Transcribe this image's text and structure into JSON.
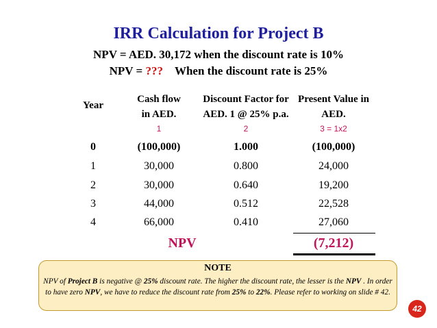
{
  "slide": {
    "title": "IRR Calculation for Project B",
    "line1": "NPV = AED. 30,172 when the discount rate is 10%",
    "line2_prefix": "NPV = ",
    "line2_unknown": "???",
    "line2_suffix": "When the discount rate is 25%",
    "number": "42"
  },
  "table": {
    "headers": {
      "year": "Year",
      "cash_flow_1": "Cash flow",
      "cash_flow_2": "in AED.",
      "discount_1": "Discount Factor for",
      "discount_2": "AED. 1 @ 25% p.a.",
      "pv_1": "Present Value in",
      "pv_2": "AED."
    },
    "column_index": {
      "cash_flow": "1",
      "discount": "2",
      "pv": "3 = 1x2"
    },
    "rows": [
      {
        "year": "0",
        "cash_flow": "(100,000)",
        "factor": "1.000",
        "pv": "(100,000)"
      },
      {
        "year": "1",
        "cash_flow": "30,000",
        "factor": "0.800",
        "pv": "24,000"
      },
      {
        "year": "2",
        "cash_flow": "30,000",
        "factor": "0.640",
        "pv": "19,200"
      },
      {
        "year": "3",
        "cash_flow": "44,000",
        "factor": "0.512",
        "pv": "22,528"
      },
      {
        "year": "4",
        "cash_flow": "66,000",
        "factor": "0.410",
        "pv": "27,060"
      }
    ],
    "npv_label": "NPV",
    "npv_value": "(7,212)"
  },
  "note": {
    "title": "NOTE",
    "t1": "NPV of ",
    "t2": "Project B",
    "t3": " is negative @ ",
    "t4": "25%",
    "t5": " discount rate. The higher the discount rate, the lesser is the ",
    "t6": "NPV",
    "t7": " . In order to have zero ",
    "t8": "NPV",
    "t9": ", we have to reduce the discount rate from ",
    "t10": "25%",
    "t11": " to ",
    "t12": "22%",
    "t13": ". Please refer to working on slide # 42."
  }
}
